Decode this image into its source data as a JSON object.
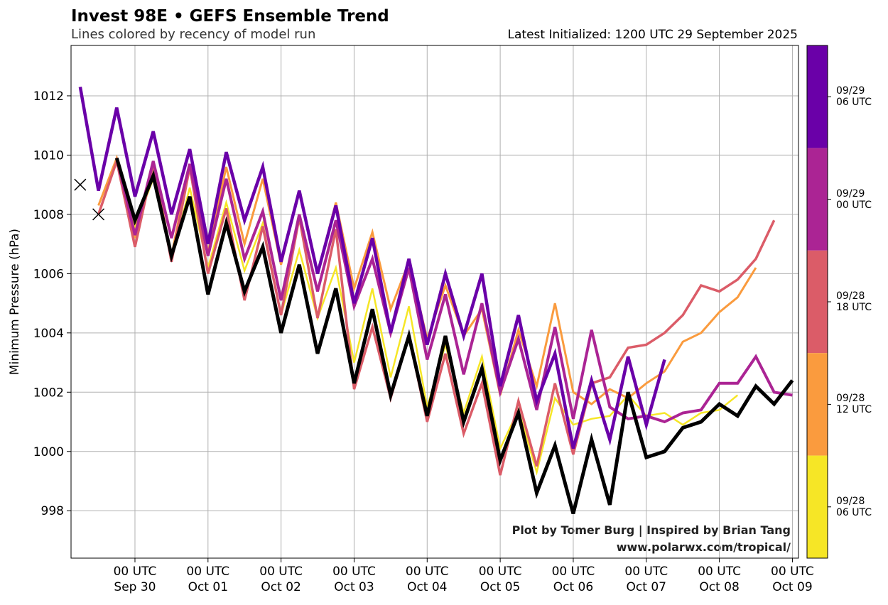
{
  "chart_data": {
    "type": "line",
    "title": "Invest 98E • GEFS Ensemble Trend",
    "subtitle": "Lines colored by recency of model run",
    "annotation": "Latest Initialized: 1200 UTC 29 September 2025",
    "ylabel": "Minimum Pressure (hPa)",
    "credits": [
      "Plot by Tomer Burg | Inspired by Brian Tang",
      "www.polarwx.com/tropical/"
    ],
    "grid": true,
    "xlim": [
      -21,
      218
    ],
    "ylim": [
      996.4,
      1013.7
    ],
    "yticks": [
      998,
      1000,
      1002,
      1004,
      1006,
      1008,
      1010,
      1012
    ],
    "xticks": [
      {
        "value": 0,
        "label": "00 UTC\nSep 30"
      },
      {
        "value": 24,
        "label": "00 UTC\nOct 01"
      },
      {
        "value": 48,
        "label": "00 UTC\nOct 02"
      },
      {
        "value": 72,
        "label": "00 UTC\nOct 03"
      },
      {
        "value": 96,
        "label": "00 UTC\nOct 04"
      },
      {
        "value": 120,
        "label": "00 UTC\nOct 05"
      },
      {
        "value": 144,
        "label": "00 UTC\nOct 06"
      },
      {
        "value": 168,
        "label": "00 UTC\nOct 07"
      },
      {
        "value": 192,
        "label": "00 UTC\nOct 08"
      },
      {
        "value": 216,
        "label": "00 UTC\nOct 09"
      }
    ],
    "x": [
      -18,
      -12,
      -6,
      0,
      6,
      12,
      18,
      24,
      30,
      36,
      42,
      48,
      54,
      60,
      66,
      72,
      78,
      84,
      90,
      96,
      102,
      108,
      114,
      120,
      126,
      132,
      138,
      144,
      150,
      156,
      162,
      168,
      174,
      180,
      186,
      192,
      198,
      204,
      210,
      216
    ],
    "observed": {
      "x": [
        -18,
        -12
      ],
      "values": [
        1009,
        1008
      ],
      "color": "#000000"
    },
    "series": [
      {
        "name": "09/28\n06 UTC",
        "color": "#f6e626",
        "line_width": 2.5,
        "values": [
          null,
          null,
          1009.9,
          1007.6,
          1009.2,
          1006.5,
          1008.9,
          1006.2,
          1008.4,
          1006.1,
          1007.7,
          1004.6,
          1006.8,
          1004.5,
          1006.2,
          1003.0,
          1005.5,
          1002.5,
          1004.9,
          1001.5,
          1003.6,
          1001.3,
          1003.2,
          1000.1,
          1001.4,
          999.3,
          1001.8,
          1000.9,
          1001.1,
          1001.2,
          1001.9,
          1001.2,
          1001.3,
          1000.9,
          1001.3,
          1001.4,
          1001.9,
          null,
          null,
          null
        ]
      },
      {
        "name": "09/28\n12 UTC",
        "color": "#fa9b3e",
        "line_width": 3,
        "values": [
          null,
          1008.3,
          1009.9,
          1007.2,
          1009.7,
          1006.6,
          1009.7,
          1006.7,
          1009.6,
          1007.0,
          1009.2,
          1006.3,
          1008.8,
          1006.0,
          1008.4,
          1005.5,
          1007.4,
          1004.8,
          1006.4,
          1003.8,
          1005.6,
          1003.9,
          1004.8,
          1001.9,
          1004.1,
          1002.2,
          1005.0,
          1002.0,
          1001.6,
          1002.1,
          1001.8,
          1002.3,
          1002.7,
          1003.7,
          1004.0,
          1004.7,
          1005.2,
          1006.2,
          null,
          null
        ]
      },
      {
        "name": "09/28\n18 UTC",
        "color": "#db5c68",
        "line_width": 3.5,
        "values": [
          null,
          1008.0,
          1009.8,
          1006.9,
          1009.7,
          1006.4,
          1009.6,
          1006.0,
          1008.2,
          1005.1,
          1007.6,
          1004.6,
          1007.9,
          1004.5,
          1007.5,
          1002.1,
          1004.2,
          1001.8,
          1003.9,
          1001.0,
          1003.3,
          1000.6,
          1002.3,
          999.2,
          1001.7,
          999.5,
          1002.3,
          999.9,
          1002.3,
          1002.5,
          1003.5,
          1003.6,
          1004.0,
          1004.6,
          1005.6,
          1005.4,
          1005.8,
          1006.5,
          1007.8,
          null
        ]
      },
      {
        "name": "09/29\n00 UTC",
        "color": "#ab2494",
        "line_width": 4,
        "values": [
          null,
          null,
          1009.9,
          1007.3,
          1009.8,
          1007.2,
          1009.7,
          1006.6,
          1009.2,
          1006.5,
          1008.1,
          1005.1,
          1008.0,
          1005.4,
          1007.8,
          1004.9,
          1006.5,
          1004.0,
          1006.2,
          1003.1,
          1005.3,
          1002.6,
          1005.0,
          1002.0,
          1003.8,
          1001.4,
          1004.2,
          1001.1,
          1004.1,
          1001.5,
          1001.1,
          1001.2,
          1001.0,
          1001.3,
          1001.4,
          1002.3,
          1002.3,
          1003.2,
          1002.0,
          1001.9
        ]
      },
      {
        "name": "09/29\n06 UTC",
        "color": "#6a00a8",
        "line_width": 4.5,
        "values": [
          1012.3,
          1008.8,
          1011.6,
          1008.6,
          1010.8,
          1008.0,
          1010.2,
          1007.0,
          1010.1,
          1007.8,
          1009.6,
          1006.4,
          1008.8,
          1006.0,
          1008.3,
          1005.0,
          1007.2,
          1004.0,
          1006.5,
          1003.6,
          1006.0,
          1003.9,
          1006.0,
          1002.2,
          1004.6,
          1001.7,
          1003.3,
          1000.1,
          1002.4,
          1000.4,
          1003.2,
          1000.9,
          1003.1,
          null,
          null,
          null,
          null,
          null,
          null,
          null
        ]
      },
      {
        "color": "#000000",
        "line_width": 5,
        "values": [
          null,
          null,
          1009.9,
          1007.8,
          1009.3,
          1006.6,
          1008.6,
          1005.3,
          1007.7,
          1005.4,
          1006.9,
          1004.0,
          1006.3,
          1003.3,
          1005.5,
          1002.3,
          1004.8,
          1001.9,
          1003.9,
          1001.2,
          1003.9,
          1001.0,
          1002.8,
          999.7,
          1001.3,
          998.6,
          1000.2,
          997.9,
          1000.4,
          998.2,
          1002.0,
          999.8,
          1000.0,
          1000.8,
          1001.0,
          1001.6,
          1001.2,
          1002.2,
          1001.6,
          1002.4
        ]
      }
    ],
    "colorbar": [
      "chart_data.series.4",
      "chart_data.series.3",
      "chart_data.series.2",
      "chart_data.series.1",
      "chart_data.series.0"
    ]
  }
}
